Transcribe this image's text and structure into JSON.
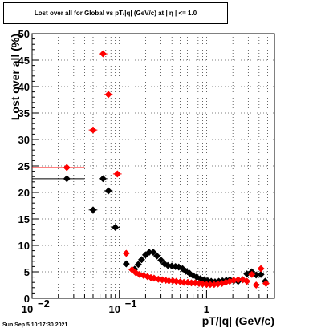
{
  "title": "Lost over all for Global vs pT/|q| (GeV/c) at |  η  | <= 1.0",
  "timestamp": "Sun Sep  5 10:17:30 2021",
  "chart_data": {
    "type": "scatter",
    "title": "Lost over all for Global vs pT/|q| (GeV/c) at |  η  | <= 1.0",
    "xlabel": "pT/|q| (GeV/c)",
    "ylabel": "Lost over all (%)",
    "x_scale": "log",
    "xlim": [
      0.01,
      6
    ],
    "ylim": [
      0,
      50
    ],
    "grid": true,
    "x_tick_labels": [
      "10",
      "−2",
      "10",
      "−1",
      "1"
    ],
    "y_tick_labels": [
      "0",
      "5",
      "10",
      "15",
      "20",
      "25",
      "30",
      "35",
      "40",
      "45",
      "50"
    ],
    "series": [
      {
        "color": "#000000",
        "points": [
          [
            0.025,
            22.6
          ],
          [
            0.05,
            16.7
          ],
          [
            0.065,
            22.6
          ],
          [
            0.075,
            20.3
          ],
          [
            0.09,
            13.4
          ],
          [
            0.12,
            6.5
          ],
          [
            0.15,
            5.5
          ],
          [
            0.165,
            6.4
          ],
          [
            0.18,
            7.3
          ],
          [
            0.2,
            8.2
          ],
          [
            0.22,
            8.7
          ],
          [
            0.245,
            8.7
          ],
          [
            0.27,
            8.0
          ],
          [
            0.3,
            7.2
          ],
          [
            0.33,
            6.5
          ],
          [
            0.36,
            6.2
          ],
          [
            0.4,
            6.1
          ],
          [
            0.44,
            6.0
          ],
          [
            0.48,
            5.9
          ],
          [
            0.53,
            5.6
          ],
          [
            0.58,
            5.1
          ],
          [
            0.64,
            4.7
          ],
          [
            0.7,
            4.3
          ],
          [
            0.77,
            4.0
          ],
          [
            0.85,
            3.7
          ],
          [
            0.94,
            3.5
          ],
          [
            1.03,
            3.3
          ],
          [
            1.13,
            3.2
          ],
          [
            1.25,
            3.1
          ],
          [
            1.38,
            3.2
          ],
          [
            1.52,
            3.3
          ],
          [
            1.68,
            3.4
          ],
          [
            1.85,
            3.5
          ],
          [
            2.05,
            3.3
          ],
          [
            2.3,
            3.2
          ],
          [
            2.6,
            3.5
          ],
          [
            2.9,
            4.6
          ],
          [
            3.3,
            5.0
          ],
          [
            3.7,
            4.4
          ],
          [
            4.2,
            4.5
          ],
          [
            4.7,
            3.2
          ]
        ],
        "x_err_first": [
          0.01,
          0.04
        ]
      },
      {
        "color": "#ff0000",
        "points": [
          [
            0.025,
            24.7
          ],
          [
            0.05,
            31.8
          ],
          [
            0.065,
            46.2
          ],
          [
            0.075,
            38.5
          ],
          [
            0.095,
            23.5
          ],
          [
            0.12,
            8.5
          ],
          [
            0.14,
            5.4
          ],
          [
            0.155,
            4.8
          ],
          [
            0.17,
            4.5
          ],
          [
            0.19,
            4.3
          ],
          [
            0.21,
            4.1
          ],
          [
            0.23,
            3.9
          ],
          [
            0.25,
            3.8
          ],
          [
            0.28,
            3.6
          ],
          [
            0.31,
            3.5
          ],
          [
            0.34,
            3.4
          ],
          [
            0.37,
            3.3
          ],
          [
            0.41,
            3.3
          ],
          [
            0.45,
            3.2
          ],
          [
            0.5,
            3.1
          ],
          [
            0.55,
            3.0
          ],
          [
            0.61,
            3.0
          ],
          [
            0.67,
            2.9
          ],
          [
            0.74,
            2.9
          ],
          [
            0.82,
            2.8
          ],
          [
            0.9,
            2.7
          ],
          [
            1.0,
            2.6
          ],
          [
            1.1,
            2.6
          ],
          [
            1.22,
            2.6
          ],
          [
            1.35,
            2.7
          ],
          [
            1.5,
            2.8
          ],
          [
            1.66,
            3.0
          ],
          [
            1.84,
            3.2
          ],
          [
            2.05,
            3.4
          ],
          [
            2.3,
            3.5
          ],
          [
            2.6,
            3.5
          ],
          [
            2.9,
            3.2
          ],
          [
            3.3,
            4.5
          ],
          [
            3.7,
            2.5
          ],
          [
            4.2,
            5.6
          ],
          [
            4.8,
            2.8
          ]
        ],
        "x_err_first": [
          0.01,
          0.04
        ]
      }
    ]
  }
}
